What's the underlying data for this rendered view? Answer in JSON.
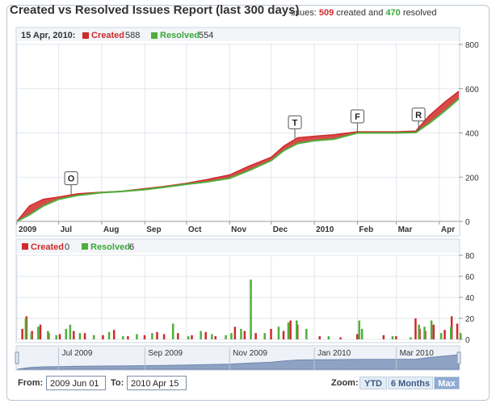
{
  "title": "Created vs Resolved Issues Report (last 300 days)",
  "summary": {
    "prefix": "ssues: ",
    "created_count": "509",
    "created_word": " created and ",
    "resolved_count": "470",
    "resolved_word": " resolved"
  },
  "top_legend": {
    "date": "15 Apr, 2010:",
    "created_label": "Created",
    "created_value": "588",
    "resolved_label": "Resolved",
    "resolved_value": "554"
  },
  "bottom_legend": {
    "created_label": "Created",
    "created_value": "0",
    "resolved_label": "Resolved",
    "resolved_value": "6"
  },
  "colors": {
    "created": "#d02a2a",
    "resolved": "#4fae3b",
    "navigator": "#8ea3c4"
  },
  "controls": {
    "from_label": "From:",
    "from_value": "2009 Jun 01",
    "to_label": "To:",
    "to_value": "2010 Apr 15",
    "zoom_label": "Zoom:",
    "zoom_options": [
      "YTD",
      "6 Months",
      "Max"
    ],
    "zoom_selected": "Max"
  },
  "chart_data": [
    {
      "type": "area",
      "x_tick_labels": [
        "2009",
        "Jul",
        "Aug",
        "Sep",
        "Oct",
        "Nov",
        "Dec",
        "2010",
        "Feb",
        "Mar",
        "Apr"
      ],
      "x_tick_dates": [
        "2009-06-01",
        "2009-07-01",
        "2009-08-01",
        "2009-09-01",
        "2009-10-01",
        "2009-11-01",
        "2009-12-01",
        "2010-01-01",
        "2010-02-01",
        "2010-03-01",
        "2010-04-01"
      ],
      "ylim": [
        0,
        800
      ],
      "y_ticks": [
        0,
        200,
        400,
        600,
        800
      ],
      "x": [
        "2009-06-01",
        "2009-06-10",
        "2009-06-20",
        "2009-07-01",
        "2009-07-15",
        "2009-08-01",
        "2009-08-15",
        "2009-09-01",
        "2009-09-15",
        "2009-10-01",
        "2009-10-15",
        "2009-11-01",
        "2009-11-15",
        "2009-12-01",
        "2009-12-10",
        "2009-12-20",
        "2010-01-01",
        "2010-01-15",
        "2010-02-01",
        "2010-02-15",
        "2010-03-01",
        "2010-03-15",
        "2010-03-25",
        "2010-04-05",
        "2010-04-15"
      ],
      "series": [
        {
          "name": "Created",
          "values": [
            0,
            70,
            100,
            110,
            125,
            132,
            136,
            148,
            158,
            172,
            188,
            210,
            250,
            290,
            340,
            378,
            385,
            392,
            405,
            405,
            405,
            408,
            480,
            540,
            588
          ]
        },
        {
          "name": "Resolved",
          "values": [
            0,
            30,
            70,
            100,
            118,
            130,
            135,
            144,
            154,
            168,
            178,
            195,
            230,
            275,
            320,
            352,
            365,
            372,
            400,
            400,
            400,
            402,
            445,
            500,
            554
          ]
        }
      ],
      "flags": [
        {
          "label": "O",
          "date": "2009-07-10",
          "value": 122
        },
        {
          "label": "T",
          "date": "2009-12-18",
          "value": 375
        },
        {
          "label": "F",
          "date": "2010-02-01",
          "value": 402
        },
        {
          "label": "R",
          "date": "2010-03-17",
          "value": 410
        }
      ]
    },
    {
      "type": "bar",
      "ylim": [
        0,
        80
      ],
      "y_ticks": [
        0,
        20,
        40,
        60,
        80
      ],
      "series": [
        {
          "name": "Created",
          "points": [
            [
              "2009-06-05",
              10
            ],
            [
              "2009-06-08",
              22
            ],
            [
              "2009-06-12",
              8
            ],
            [
              "2009-06-18",
              14
            ],
            [
              "2009-06-24",
              6
            ],
            [
              "2009-07-02",
              5
            ],
            [
              "2009-07-12",
              8
            ],
            [
              "2009-07-20",
              6
            ],
            [
              "2009-08-02",
              4
            ],
            [
              "2009-08-10",
              9
            ],
            [
              "2009-08-20",
              3
            ],
            [
              "2009-09-01",
              4
            ],
            [
              "2009-09-10",
              7
            ],
            [
              "2009-09-15",
              5
            ],
            [
              "2009-09-25",
              6
            ],
            [
              "2009-10-05",
              4
            ],
            [
              "2009-10-15",
              7
            ],
            [
              "2009-10-22",
              3
            ],
            [
              "2009-11-05",
              12
            ],
            [
              "2009-11-12",
              8
            ],
            [
              "2009-11-20",
              6
            ],
            [
              "2009-12-01",
              10
            ],
            [
              "2009-12-10",
              8
            ],
            [
              "2009-12-15",
              18
            ],
            [
              "2009-12-20",
              14
            ],
            [
              "2010-01-05",
              3
            ],
            [
              "2010-01-20",
              2
            ],
            [
              "2010-02-01",
              5
            ],
            [
              "2010-02-20",
              4
            ],
            [
              "2010-03-01",
              3
            ],
            [
              "2010-03-15",
              20
            ],
            [
              "2010-03-18",
              10
            ],
            [
              "2010-03-22",
              8
            ],
            [
              "2010-03-28",
              14
            ],
            [
              "2010-04-05",
              9
            ],
            [
              "2010-04-10",
              22
            ],
            [
              "2010-04-14",
              15
            ]
          ]
        },
        {
          "name": "Resolved",
          "points": [
            [
              "2009-06-06",
              20
            ],
            [
              "2009-06-10",
              6
            ],
            [
              "2009-06-15",
              12
            ],
            [
              "2009-06-22",
              8
            ],
            [
              "2009-06-28",
              4
            ],
            [
              "2009-07-05",
              10
            ],
            [
              "2009-07-08",
              14
            ],
            [
              "2009-07-15",
              6
            ],
            [
              "2009-07-25",
              4
            ],
            [
              "2009-08-05",
              7
            ],
            [
              "2009-08-15",
              3
            ],
            [
              "2009-08-25",
              5
            ],
            [
              "2009-09-05",
              6
            ],
            [
              "2009-09-20",
              15
            ],
            [
              "2009-10-01",
              3
            ],
            [
              "2009-10-10",
              8
            ],
            [
              "2009-10-18",
              5
            ],
            [
              "2009-10-28",
              4
            ],
            [
              "2009-11-01",
              6
            ],
            [
              "2009-11-08",
              10
            ],
            [
              "2009-11-15",
              57
            ],
            [
              "2009-11-25",
              6
            ],
            [
              "2009-12-05",
              12
            ],
            [
              "2009-12-12",
              16
            ],
            [
              "2009-12-18",
              18
            ],
            [
              "2009-12-25",
              10
            ],
            [
              "2010-01-10",
              3
            ],
            [
              "2010-02-01",
              18
            ],
            [
              "2010-02-03",
              10
            ],
            [
              "2010-02-25",
              3
            ],
            [
              "2010-03-10",
              2
            ],
            [
              "2010-03-16",
              14
            ],
            [
              "2010-03-20",
              12
            ],
            [
              "2010-03-25",
              18
            ],
            [
              "2010-04-01",
              6
            ],
            [
              "2010-04-08",
              12
            ],
            [
              "2010-04-15",
              6
            ]
          ]
        }
      ]
    },
    {
      "type": "area",
      "x_tick_labels": [
        "Jul 2009",
        "Sep 2009",
        "Nov 2009",
        "Jan 2010",
        "Mar 2010"
      ],
      "x_tick_dates": [
        "2009-07-01",
        "2009-09-01",
        "2009-11-01",
        "2010-01-01",
        "2010-03-01"
      ]
    }
  ]
}
